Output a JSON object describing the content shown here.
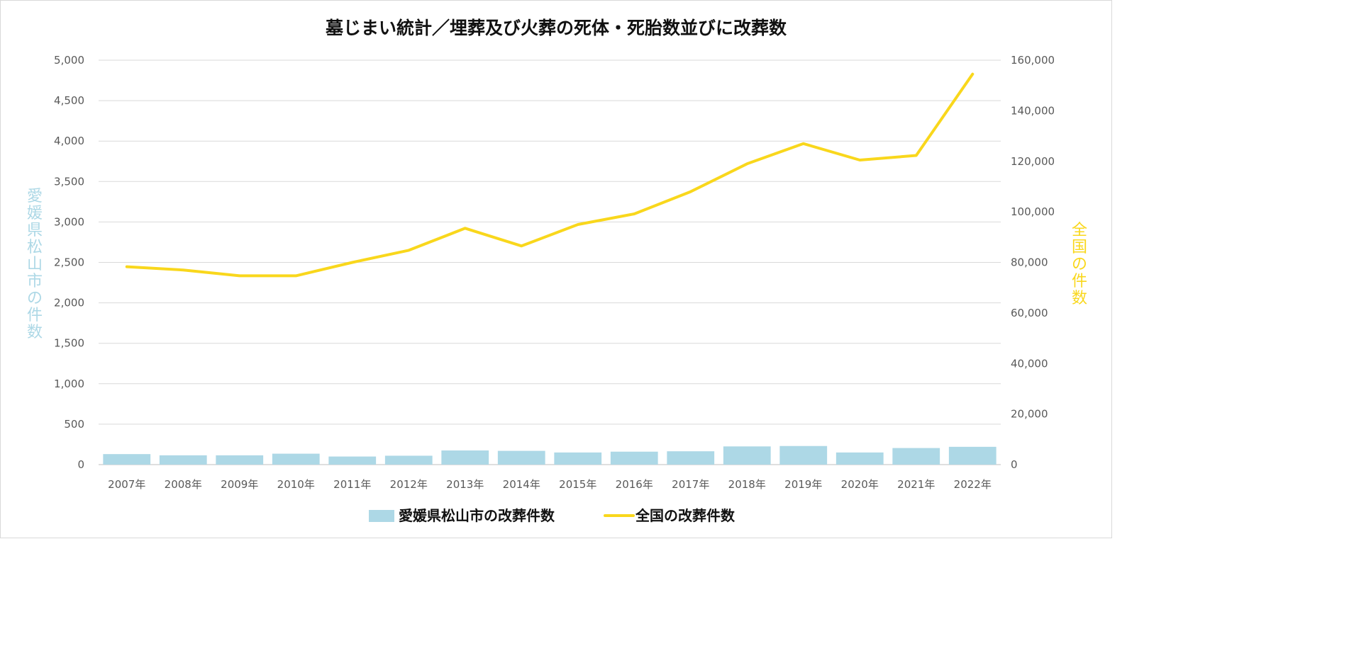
{
  "chart_data": {
    "type": "bar",
    "title": "墓じまい統計／埋葬及び火葬の死体・死胎数並びに改葬数",
    "categories": [
      "2007年",
      "2008年",
      "2009年",
      "2010年",
      "2011年",
      "2012年",
      "2013年",
      "2014年",
      "2015年",
      "2016年",
      "2017年",
      "2018年",
      "2019年",
      "2020年",
      "2021年",
      "2022年"
    ],
    "series": [
      {
        "name": "愛媛県松山市の改葬件数",
        "type": "bar",
        "axis": "left",
        "color": "#add8e6",
        "values": [
          130,
          115,
          115,
          135,
          100,
          110,
          175,
          170,
          150,
          160,
          165,
          225,
          230,
          150,
          205,
          220
        ]
      },
      {
        "name": "全国の改葬件数",
        "type": "line",
        "axis": "right",
        "color": "#f9d71c",
        "values": [
          78300,
          77000,
          74700,
          74700,
          80000,
          84800,
          93500,
          86500,
          95000,
          99200,
          108000,
          119000,
          127000,
          120500,
          122300,
          154500
        ]
      }
    ],
    "y_left": {
      "label": "愛媛県松山市の件数",
      "range": [
        0,
        5000
      ],
      "ticks": [
        "0",
        "500",
        "1,000",
        "1,500",
        "2,000",
        "2,500",
        "3,000",
        "3,500",
        "4,000",
        "4,500",
        "5,000"
      ],
      "color": "#add8e6"
    },
    "y_right": {
      "label": "全国の件数",
      "range": [
        0,
        160000
      ],
      "ticks": [
        "0",
        "20,000",
        "40,000",
        "60,000",
        "80,000",
        "100,000",
        "120,000",
        "140,000",
        "160,000"
      ],
      "color": "#f9d71c"
    },
    "grid": true,
    "legend": "bottom"
  }
}
